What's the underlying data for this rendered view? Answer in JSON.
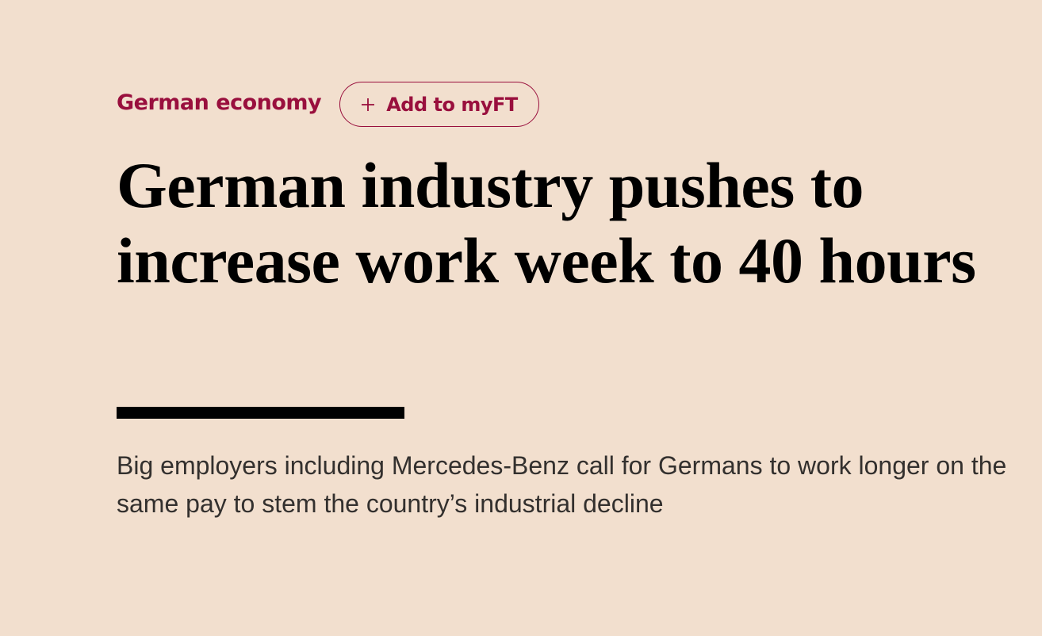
{
  "topic": "German economy",
  "follow_button": "Add to myFT",
  "headline": "German industry pushes to increase work week to 40 hours",
  "standfirst": "Big employers including Mercedes-Benz call for Germans to work longer on the same pay to stem the country’s industrial decline"
}
